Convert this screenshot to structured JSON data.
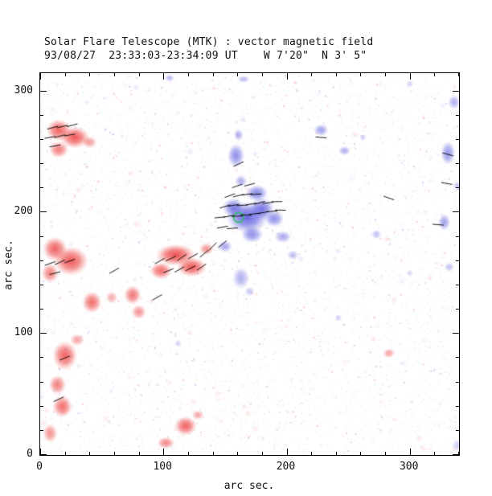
{
  "header": {
    "title": "Solar Flare Telescope (MTK) : vector magnetic field",
    "subtitle": "93/08/27  23:33:03-23:34:09 UT    W 7'20\"  N 3' 5\""
  },
  "axes": {
    "xlabel": "arc sec.",
    "ylabel": "arc sec.",
    "xlim": [
      0,
      340
    ],
    "ylim": [
      0,
      315
    ],
    "xticks": [
      0,
      100,
      200,
      300
    ],
    "xtick_labels": [
      "0",
      "100",
      "200",
      "300"
    ],
    "yticks": [
      0,
      100,
      200,
      300
    ],
    "ytick_labels": [
      "0",
      "100",
      "200",
      "300"
    ],
    "minor_step": 20
  },
  "colors": {
    "positive": "95,95,225",
    "negative": "238,70,70",
    "contour": "#19c84b",
    "axis": "#000000",
    "background": "#ffffff"
  },
  "chart_data": {
    "type": "heatmap",
    "title": "Solar Flare Telescope (MTK) : vector magnetic field",
    "description": "Solar vector magnetogram: blue = positive line-of-sight polarity, red = negative polarity, short black segments = transverse field vectors, green contour = flare kernel. Units arc sec on both axes.",
    "units": "arc sec",
    "blobs": [
      [
        15,
        268,
        10,
        9,
        "n",
        0.85
      ],
      [
        28,
        262,
        12,
        9,
        "n",
        0.9
      ],
      [
        15,
        252,
        8,
        7,
        "n",
        0.7
      ],
      [
        40,
        258,
        6,
        5,
        "n",
        0.55
      ],
      [
        12,
        170,
        10,
        10,
        "n",
        0.85
      ],
      [
        25,
        160,
        14,
        12,
        "n",
        0.9
      ],
      [
        8,
        150,
        7,
        8,
        "n",
        0.7
      ],
      [
        110,
        165,
        16,
        9,
        "n",
        0.95
      ],
      [
        123,
        155,
        12,
        8,
        "n",
        0.9
      ],
      [
        98,
        152,
        9,
        7,
        "n",
        0.8
      ],
      [
        135,
        170,
        6,
        5,
        "n",
        0.6
      ],
      [
        75,
        132,
        7,
        8,
        "n",
        0.75
      ],
      [
        80,
        118,
        6,
        6,
        "n",
        0.6
      ],
      [
        42,
        126,
        8,
        9,
        "n",
        0.8
      ],
      [
        58,
        130,
        5,
        5,
        "n",
        0.45
      ],
      [
        20,
        82,
        10,
        12,
        "n",
        0.85
      ],
      [
        14,
        58,
        7,
        8,
        "n",
        0.7
      ],
      [
        18,
        40,
        8,
        9,
        "n",
        0.8
      ],
      [
        8,
        18,
        6,
        8,
        "n",
        0.6
      ],
      [
        30,
        95,
        6,
        5,
        "n",
        0.5
      ],
      [
        118,
        24,
        9,
        8,
        "n",
        0.85
      ],
      [
        102,
        10,
        7,
        5,
        "n",
        0.65
      ],
      [
        128,
        33,
        5,
        4,
        "n",
        0.5
      ],
      [
        283,
        84,
        5,
        4,
        "n",
        0.5
      ],
      [
        168,
        196,
        17,
        13,
        "p",
        0.95
      ],
      [
        180,
        203,
        10,
        9,
        "p",
        0.85
      ],
      [
        157,
        204,
        9,
        8,
        "p",
        0.8
      ],
      [
        172,
        182,
        9,
        7,
        "p",
        0.7
      ],
      [
        190,
        195,
        8,
        7,
        "p",
        0.7
      ],
      [
        176,
        216,
        9,
        7,
        "p",
        0.75
      ],
      [
        163,
        226,
        5,
        5,
        "p",
        0.5
      ],
      [
        159,
        247,
        7,
        10,
        "p",
        0.7
      ],
      [
        161,
        264,
        4,
        5,
        "p",
        0.5
      ],
      [
        150,
        172,
        6,
        5,
        "p",
        0.55
      ],
      [
        163,
        146,
        7,
        9,
        "p",
        0.5
      ],
      [
        170,
        135,
        4,
        4,
        "p",
        0.35
      ],
      [
        197,
        180,
        7,
        5,
        "p",
        0.55
      ],
      [
        205,
        165,
        5,
        4,
        "p",
        0.4
      ],
      [
        228,
        268,
        6,
        5,
        "p",
        0.6
      ],
      [
        247,
        251,
        5,
        4,
        "p",
        0.5
      ],
      [
        262,
        262,
        3,
        3,
        "p",
        0.3
      ],
      [
        331,
        249,
        6,
        10,
        "p",
        0.65
      ],
      [
        328,
        192,
        5,
        7,
        "p",
        0.6
      ],
      [
        336,
        291,
        5,
        6,
        "p",
        0.5
      ],
      [
        332,
        155,
        4,
        4,
        "p",
        0.4
      ],
      [
        339,
        222,
        4,
        4,
        "p",
        0.4
      ],
      [
        273,
        182,
        4,
        4,
        "p",
        0.4
      ],
      [
        105,
        311,
        4,
        3,
        "p",
        0.45
      ],
      [
        165,
        310,
        5,
        3,
        "p",
        0.45
      ],
      [
        300,
        306,
        3,
        3,
        "p",
        0.3
      ],
      [
        112,
        92,
        3,
        3,
        "p",
        0.3
      ],
      [
        242,
        113,
        3,
        3,
        "p",
        0.3
      ],
      [
        339,
        8,
        5,
        5,
        "p",
        0.3
      ],
      [
        300,
        150,
        3,
        3,
        "p",
        0.25
      ]
    ],
    "arrows": [
      [
        146,
        196,
        185
      ],
      [
        153,
        197,
        190
      ],
      [
        160,
        197,
        183
      ],
      [
        167,
        198,
        178
      ],
      [
        174,
        199,
        186
      ],
      [
        181,
        200,
        190
      ],
      [
        188,
        201,
        184
      ],
      [
        195,
        202,
        179
      ],
      [
        150,
        205,
        196
      ],
      [
        157,
        206,
        190
      ],
      [
        164,
        206,
        184
      ],
      [
        171,
        207,
        191
      ],
      [
        178,
        208,
        196
      ],
      [
        185,
        208,
        186
      ],
      [
        192,
        209,
        181
      ],
      [
        154,
        214,
        200
      ],
      [
        161,
        214,
        194
      ],
      [
        168,
        215,
        189
      ],
      [
        175,
        215,
        184
      ],
      [
        160,
        222,
        200
      ],
      [
        170,
        223,
        195
      ],
      [
        148,
        188,
        190
      ],
      [
        156,
        187,
        184
      ],
      [
        161,
        240,
        205
      ],
      [
        97,
        160,
        30
      ],
      [
        106,
        162,
        25
      ],
      [
        115,
        163,
        35
      ],
      [
        124,
        164,
        30
      ],
      [
        133,
        166,
        40
      ],
      [
        104,
        152,
        22
      ],
      [
        113,
        153,
        30
      ],
      [
        122,
        154,
        27
      ],
      [
        131,
        155,
        35
      ],
      [
        140,
        172,
        45
      ],
      [
        148,
        174,
        40
      ],
      [
        8,
        262,
        10
      ],
      [
        16,
        263,
        15
      ],
      [
        24,
        264,
        10
      ],
      [
        10,
        270,
        15
      ],
      [
        18,
        271,
        12
      ],
      [
        26,
        272,
        15
      ],
      [
        12,
        255,
        10
      ],
      [
        8,
        158,
        20
      ],
      [
        16,
        159,
        25
      ],
      [
        24,
        160,
        20
      ],
      [
        12,
        150,
        15
      ],
      [
        60,
        152,
        30
      ],
      [
        283,
        212,
        160
      ],
      [
        330,
        224,
        170
      ],
      [
        323,
        190,
        175
      ],
      [
        331,
        248,
        165
      ],
      [
        228,
        262,
        175
      ],
      [
        20,
        80,
        22
      ],
      [
        15,
        46,
        25
      ],
      [
        95,
        130,
        30
      ]
    ],
    "arrow_len": 9,
    "contour": {
      "x": 161,
      "y": 196,
      "r": 4
    },
    "noise": {
      "seed": 987654321,
      "dots": 5200,
      "smudges": 140,
      "alpha_min": 0.06,
      "alpha_max": 0.3
    }
  }
}
